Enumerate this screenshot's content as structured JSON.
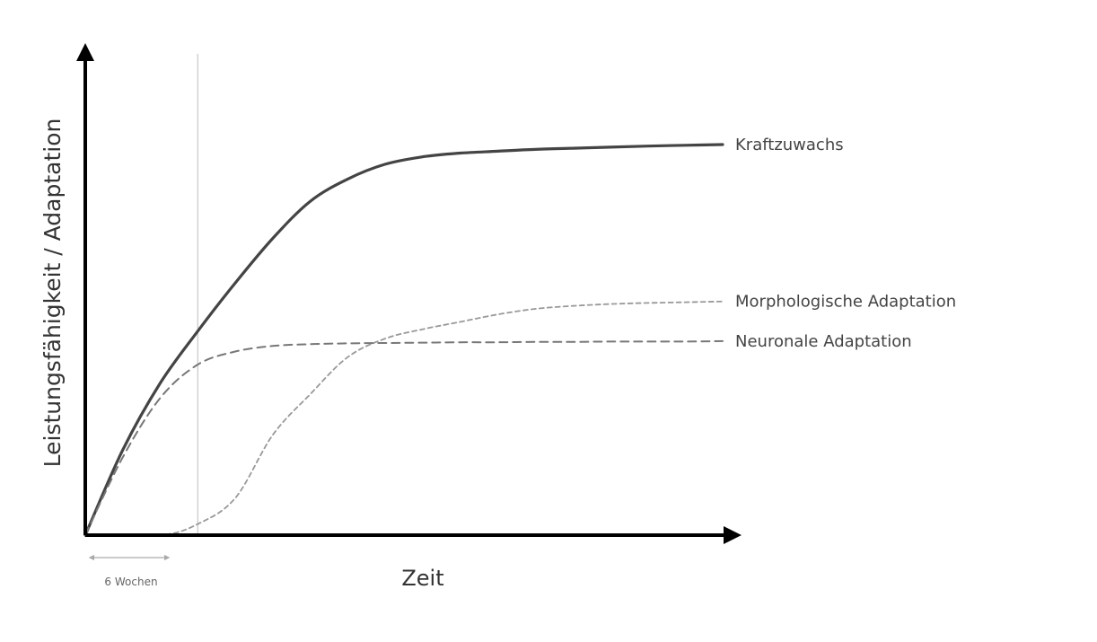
{
  "chart_data": {
    "type": "line",
    "xlabel": "Zeit",
    "ylabel": "Leistungsfähigkeit / Adaptation",
    "xlim": [
      0,
      36
    ],
    "ylim": [
      0,
      110
    ],
    "grid": false,
    "legend": "inline-right",
    "annotation": {
      "label": "6 Wochen",
      "x": 6
    },
    "series": [
      {
        "name": "Kraftzuwachs",
        "style": "solid",
        "color": "#444444",
        "x": [
          0,
          2,
          4,
          6,
          8,
          10,
          12,
          14,
          16,
          18,
          20,
          22,
          24,
          26,
          28,
          30,
          32,
          34
        ],
        "values": [
          0,
          23,
          41,
          55,
          68,
          80,
          90,
          96,
          100,
          102,
          103,
          103.5,
          104,
          104.3,
          104.6,
          104.9,
          105.1,
          105.3
        ]
      },
      {
        "name": "Morphologische Adaptation",
        "style": "dashed",
        "color": "#999999",
        "x": [
          0,
          4,
          6,
          8,
          10,
          12,
          14,
          16,
          18,
          20,
          22,
          24,
          26,
          28,
          30,
          32,
          34
        ],
        "values": [
          0,
          0,
          3,
          10,
          27,
          38,
          48,
          53,
          55.5,
          57.5,
          59.5,
          61,
          61.8,
          62.3,
          62.6,
          62.8,
          63
        ]
      },
      {
        "name": "Neuronale Adaptation",
        "style": "dashed",
        "color": "#777777",
        "x": [
          0,
          2,
          4,
          6,
          8,
          10,
          12,
          14,
          16,
          18,
          20,
          22,
          24,
          26,
          28,
          30,
          32,
          34
        ],
        "values": [
          0,
          21,
          37,
          46,
          49.5,
          51,
          51.5,
          51.7,
          51.8,
          51.9,
          52,
          52,
          52.1,
          52.1,
          52.2,
          52.2,
          52.2,
          52.3
        ]
      }
    ]
  }
}
